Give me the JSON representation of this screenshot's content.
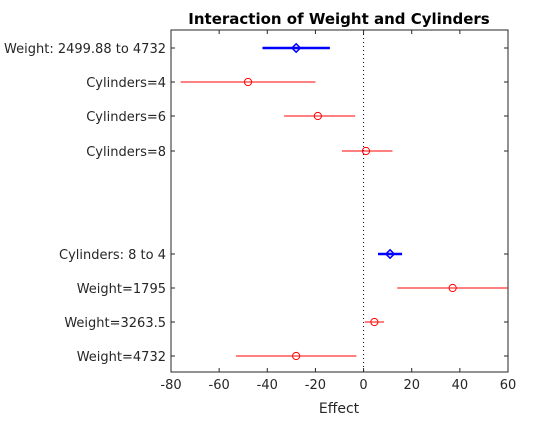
{
  "chart_data": {
    "type": "interval",
    "title": "Interaction of Weight and Cylinders",
    "xlabel": "Effect",
    "ylabel": "",
    "xlim": [
      -80,
      60
    ],
    "xticks": [
      "-80",
      "-60",
      "-40",
      "-20",
      "0",
      "20",
      "40",
      "60"
    ],
    "xtick_values": [
      -80,
      -60,
      -40,
      -20,
      0,
      20,
      40,
      60
    ],
    "reference_line": {
      "x": 0,
      "style": "dotted",
      "color": "#000000"
    },
    "grid": false,
    "legend": "none",
    "groups": [
      {
        "main": {
          "label": "Weight: 2499.88 to 4732",
          "center": -28,
          "low": -42,
          "high": -14,
          "color": "#0000ff"
        },
        "rows": [
          {
            "label": "Cylinders=4",
            "center": -48,
            "low": -76,
            "high": -20,
            "color": "#ff0000"
          },
          {
            "label": "Cylinders=6",
            "center": -19,
            "low": -33,
            "high": -3.5,
            "color": "#ff0000"
          },
          {
            "label": "Cylinders=8",
            "center": 1,
            "low": -9,
            "high": 12,
            "color": "#ff0000"
          }
        ]
      },
      {
        "main": {
          "label": "Cylinders: 8 to 4",
          "center": 11,
          "low": 6,
          "high": 16,
          "color": "#0000ff"
        },
        "rows": [
          {
            "label": "Weight=1795",
            "center": 37,
            "low": 14,
            "high": 60,
            "color": "#ff0000"
          },
          {
            "label": "Weight=3263.5",
            "center": 4.5,
            "low": 0.5,
            "high": 8.5,
            "color": "#ff0000"
          },
          {
            "label": "Weight=4732",
            "center": -28,
            "low": -53,
            "high": -3,
            "color": "#ff0000"
          }
        ]
      }
    ]
  }
}
